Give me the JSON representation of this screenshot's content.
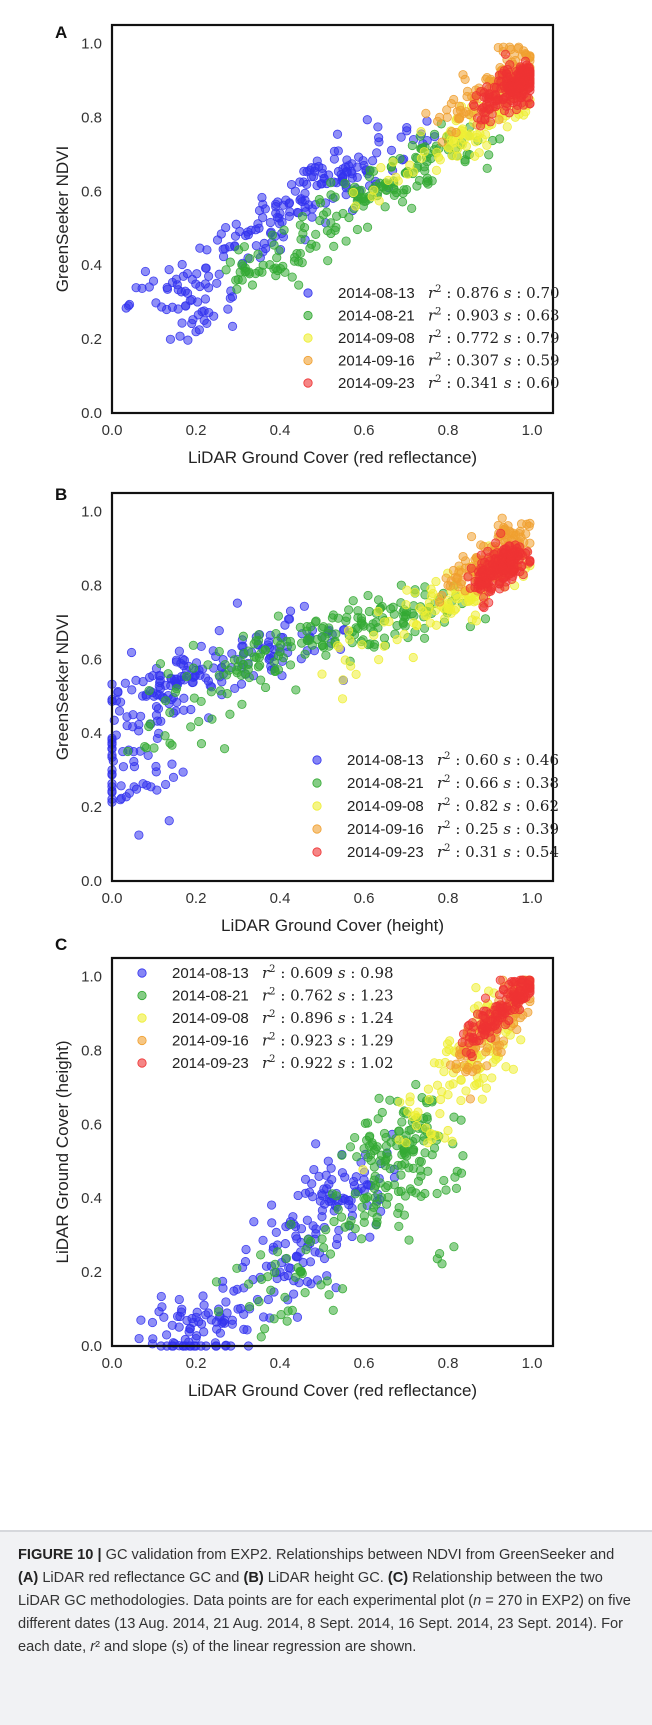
{
  "figure": {
    "caption": {
      "label": "FIGURE 10 |",
      "t1": " GC validation from EXP2. Relationships between NDVI from GreenSeeker and ",
      "b1": "(A)",
      "t2": " LiDAR red reflectance GC and ",
      "b2": "(B)",
      "t3": " LiDAR height GC. ",
      "b3": "(C)",
      "t4": " Relationship between the two LiDAR GC methodologies. Data points are for each experimental plot (",
      "n_var": "n",
      "t5": " = 270 in EXP2) on five different dates (13 Aug. 2014, 21 Aug. 2014, 8 Sept. 2014, 16 Sept. 2014, 23 Sept. 2014). For each date, ",
      "r_var": "r",
      "t6": "² and slope (s) of the linear regression are shown."
    }
  },
  "chart_data": [
    {
      "panel": "A",
      "type": "scatter",
      "xlabel": "LiDAR Ground Cover (red reflectance)",
      "ylabel": "GreenSeeker NDVI",
      "xlim": [
        0.0,
        1.05
      ],
      "ylim": [
        0.0,
        1.05
      ],
      "xticks": [
        "0.0",
        "0.2",
        "0.4",
        "0.6",
        "0.8",
        "1.0"
      ],
      "yticks": [
        "0.0",
        "0.2",
        "0.4",
        "0.6",
        "0.8",
        "1.0"
      ],
      "grid": false,
      "legend_position": "lower-right",
      "series": [
        {
          "name": "2014-08-13",
          "r2": "0.876",
          "s": "0.70",
          "color": "#3333ee",
          "n": 270,
          "sample_points": [
            [
              0.13,
              0.28
            ],
            [
              0.17,
              0.37
            ],
            [
              0.2,
              0.22
            ],
            [
              0.23,
              0.37
            ],
            [
              0.28,
              0.45
            ],
            [
              0.35,
              0.5
            ],
            [
              0.4,
              0.54
            ],
            [
              0.45,
              0.58
            ],
            [
              0.5,
              0.62
            ],
            [
              0.55,
              0.64
            ],
            [
              0.6,
              0.67
            ],
            [
              0.75,
              0.79
            ]
          ]
        },
        {
          "name": "2014-08-21",
          "r2": "0.903",
          "s": "0.63",
          "color": "#33aa33",
          "n": 270,
          "sample_points": [
            [
              0.31,
              0.36
            ],
            [
              0.36,
              0.4
            ],
            [
              0.45,
              0.47
            ],
            [
              0.55,
              0.54
            ],
            [
              0.6,
              0.58
            ],
            [
              0.65,
              0.62
            ],
            [
              0.7,
              0.65
            ],
            [
              0.75,
              0.68
            ],
            [
              0.8,
              0.72
            ],
            [
              0.85,
              0.75
            ]
          ]
        },
        {
          "name": "2014-09-08",
          "r2": "0.772",
          "s": "0.79",
          "color": "#eeee33",
          "n": 270,
          "sample_points": [
            [
              0.58,
              0.56
            ],
            [
              0.8,
              0.72
            ],
            [
              0.85,
              0.75
            ],
            [
              0.88,
              0.79
            ],
            [
              0.92,
              0.82
            ],
            [
              0.95,
              0.85
            ]
          ]
        },
        {
          "name": "2014-09-16",
          "r2": "0.307",
          "s": "0.59",
          "color": "#f0a030",
          "n": 270,
          "sample_points": [
            [
              0.78,
              0.8
            ],
            [
              0.87,
              0.85
            ],
            [
              0.92,
              0.88
            ],
            [
              0.95,
              0.9
            ],
            [
              0.97,
              0.93
            ],
            [
              0.98,
              0.98
            ]
          ]
        },
        {
          "name": "2014-09-23",
          "r2": "0.341",
          "s": "0.60",
          "color": "#ee3333",
          "n": 270,
          "sample_points": [
            [
              0.88,
              0.82
            ],
            [
              0.92,
              0.85
            ],
            [
              0.95,
              0.87
            ],
            [
              0.97,
              0.88
            ],
            [
              0.98,
              0.9
            ],
            [
              0.99,
              0.92
            ]
          ]
        }
      ]
    },
    {
      "panel": "B",
      "type": "scatter",
      "xlabel": "LiDAR Ground Cover (height)",
      "ylabel": "GreenSeeker NDVI",
      "xlim": [
        0.0,
        1.05
      ],
      "ylim": [
        0.0,
        1.05
      ],
      "xticks": [
        "0.0",
        "0.2",
        "0.4",
        "0.6",
        "0.8",
        "1.0"
      ],
      "yticks": [
        "0.0",
        "0.2",
        "0.4",
        "0.6",
        "0.8",
        "1.0"
      ],
      "grid": false,
      "legend_position": "lower-right",
      "series": [
        {
          "name": "2014-08-13",
          "r2": "0.60",
          "s": "0.46",
          "color": "#3333ee",
          "n": 270,
          "sample_points": [
            [
              0.0,
              0.37
            ],
            [
              0.02,
              0.22
            ],
            [
              0.05,
              0.45
            ],
            [
              0.1,
              0.5
            ],
            [
              0.15,
              0.54
            ],
            [
              0.2,
              0.57
            ],
            [
              0.3,
              0.6
            ],
            [
              0.4,
              0.62
            ],
            [
              0.5,
              0.66
            ]
          ]
        },
        {
          "name": "2014-08-21",
          "r2": "0.66",
          "s": "0.38",
          "color": "#33aa33",
          "n": 270,
          "sample_points": [
            [
              0.1,
              0.36
            ],
            [
              0.3,
              0.58
            ],
            [
              0.4,
              0.62
            ],
            [
              0.5,
              0.66
            ],
            [
              0.6,
              0.69
            ],
            [
              0.7,
              0.72
            ],
            [
              0.75,
              0.73
            ]
          ]
        },
        {
          "name": "2014-09-08",
          "r2": "0.82",
          "s": "0.62",
          "color": "#eeee33",
          "n": 270,
          "sample_points": [
            [
              0.5,
              0.56
            ],
            [
              0.75,
              0.72
            ],
            [
              0.8,
              0.76
            ],
            [
              0.85,
              0.79
            ],
            [
              0.9,
              0.83
            ],
            [
              0.95,
              0.86
            ]
          ]
        },
        {
          "name": "2014-09-16",
          "r2": "0.25",
          "s": "0.39",
          "color": "#f0a030",
          "n": 270,
          "sample_points": [
            [
              0.8,
              0.8
            ],
            [
              0.87,
              0.84
            ],
            [
              0.92,
              0.88
            ],
            [
              0.95,
              0.91
            ],
            [
              0.97,
              0.94
            ]
          ]
        },
        {
          "name": "2014-09-23",
          "r2": "0.31",
          "s": "0.54",
          "color": "#ee3333",
          "n": 270,
          "sample_points": [
            [
              0.88,
              0.8
            ],
            [
              0.9,
              0.83
            ],
            [
              0.93,
              0.85
            ],
            [
              0.95,
              0.87
            ],
            [
              0.97,
              0.89
            ]
          ]
        }
      ]
    },
    {
      "panel": "C",
      "type": "scatter",
      "xlabel": "LiDAR Ground Cover (red reflectance)",
      "ylabel": "LiDAR Ground Cover (height)",
      "xlim": [
        0.0,
        1.05
      ],
      "ylim": [
        0.0,
        1.05
      ],
      "xticks": [
        "0.0",
        "0.2",
        "0.4",
        "0.6",
        "0.8",
        "1.0"
      ],
      "yticks": [
        "0.0",
        "0.2",
        "0.4",
        "0.6",
        "0.8",
        "1.0"
      ],
      "grid": false,
      "legend_position": "upper-left",
      "series": [
        {
          "name": "2014-08-13",
          "r2": "0.609",
          "s": "0.98",
          "color": "#3333ee",
          "n": 270,
          "sample_points": [
            [
              0.13,
              0.03
            ],
            [
              0.2,
              0.02
            ],
            [
              0.3,
              0.1
            ],
            [
              0.4,
              0.2
            ],
            [
              0.45,
              0.28
            ],
            [
              0.5,
              0.35
            ],
            [
              0.55,
              0.4
            ],
            [
              0.6,
              0.45
            ]
          ]
        },
        {
          "name": "2014-08-21",
          "r2": "0.762",
          "s": "1.23",
          "color": "#33aa33",
          "n": 270,
          "sample_points": [
            [
              0.35,
              0.12
            ],
            [
              0.45,
              0.2
            ],
            [
              0.6,
              0.4
            ],
            [
              0.65,
              0.5
            ],
            [
              0.7,
              0.55
            ],
            [
              0.75,
              0.62
            ],
            [
              0.78,
              0.25
            ]
          ]
        },
        {
          "name": "2014-09-08",
          "r2": "0.896",
          "s": "1.24",
          "color": "#eeee33",
          "n": 270,
          "sample_points": [
            [
              0.7,
              0.55
            ],
            [
              0.8,
              0.68
            ],
            [
              0.85,
              0.76
            ],
            [
              0.9,
              0.84
            ],
            [
              0.95,
              0.92
            ]
          ]
        },
        {
          "name": "2014-09-16",
          "r2": "0.923",
          "s": "1.29",
          "color": "#f0a030",
          "n": 270,
          "sample_points": [
            [
              0.82,
              0.75
            ],
            [
              0.88,
              0.82
            ],
            [
              0.92,
              0.88
            ],
            [
              0.96,
              0.94
            ],
            [
              0.99,
              0.98
            ]
          ]
        },
        {
          "name": "2014-09-23",
          "r2": "0.922",
          "s": "1.02",
          "color": "#ee3333",
          "n": 270,
          "sample_points": [
            [
              0.85,
              0.82
            ],
            [
              0.9,
              0.88
            ],
            [
              0.94,
              0.92
            ],
            [
              0.97,
              0.96
            ],
            [
              0.99,
              0.98
            ]
          ]
        }
      ]
    }
  ]
}
